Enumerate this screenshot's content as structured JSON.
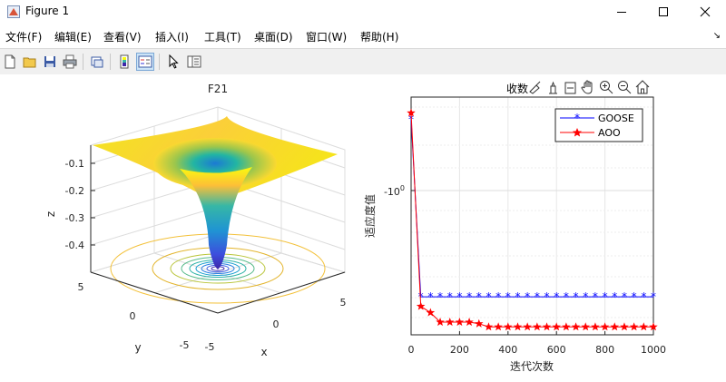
{
  "window": {
    "title": "Figure 1"
  },
  "menu": [
    "文件(F)",
    "编辑(E)",
    "查看(V)",
    "插入(I)",
    "工具(T)",
    "桌面(D)",
    "窗口(W)",
    "帮助(H)"
  ],
  "axes_toolbar": {
    "collect_label": "收",
    "extra": "数"
  },
  "chart_data": [
    {
      "type": "surface",
      "title": "F21",
      "xlabel": "x",
      "ylabel": "y",
      "zlabel": "z",
      "x_ticks": [
        "-5",
        "0",
        "5"
      ],
      "y_ticks": [
        "-5",
        "0",
        "5"
      ],
      "z_ticks": [
        "-0.1",
        "-0.2",
        "-0.3",
        "-0.4"
      ],
      "colormap": [
        "#f9fb0e",
        "#fdbf37",
        "#36b7a6",
        "#1f94d3",
        "#3c4fdd",
        "#3e26a8"
      ]
    },
    {
      "type": "line",
      "xlabel": "迭代次数",
      "ylabel": "适应度值",
      "x_ticks": [
        0,
        200,
        400,
        600,
        800,
        1000
      ],
      "xlim": [
        0,
        1000
      ],
      "y_scale": "log",
      "y_tick_label": "-10",
      "y_tick_exp": "0",
      "legend": "top-right",
      "grid": true,
      "series": [
        {
          "name": "GOOSE",
          "color": "#0000ff",
          "marker": "*",
          "x": [
            0,
            40,
            80,
            120,
            160,
            200,
            240,
            280,
            320,
            360,
            400,
            440,
            480,
            520,
            560,
            600,
            640,
            680,
            720,
            760,
            800,
            840,
            880,
            920,
            960,
            1000
          ],
          "y": [
            -1.18,
            -0.62,
            -0.62,
            -0.62,
            -0.62,
            -0.62,
            -0.62,
            -0.62,
            -0.62,
            -0.62,
            -0.62,
            -0.62,
            -0.62,
            -0.62,
            -0.62,
            -0.62,
            -0.62,
            -0.62,
            -0.62,
            -0.62,
            -0.62,
            -0.62,
            -0.62,
            -0.62,
            -0.62,
            -0.62
          ]
        },
        {
          "name": "AOO",
          "color": "#ff0000",
          "marker": "pentagram",
          "x": [
            0,
            40,
            80,
            120,
            160,
            200,
            240,
            280,
            320,
            360,
            400,
            440,
            480,
            520,
            560,
            600,
            640,
            680,
            720,
            760,
            800,
            840,
            880,
            920,
            960,
            1000
          ],
          "y": [
            -1.2,
            -0.59,
            -0.57,
            -0.54,
            -0.54,
            -0.54,
            -0.54,
            -0.535,
            -0.525,
            -0.525,
            -0.525,
            -0.525,
            -0.525,
            -0.525,
            -0.525,
            -0.525,
            -0.525,
            -0.525,
            -0.525,
            -0.525,
            -0.525,
            -0.525,
            -0.525,
            -0.525,
            -0.525,
            -0.525
          ]
        }
      ]
    }
  ]
}
